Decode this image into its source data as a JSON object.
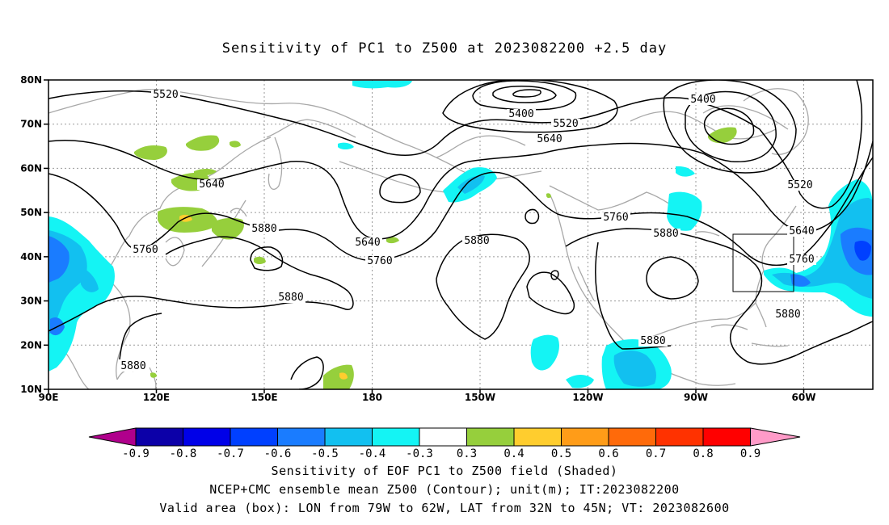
{
  "title": "Sensitivity of PC1 to Z500 at 2023082200 +2.5 day",
  "lat_ticks": [
    "80N",
    "70N",
    "60N",
    "50N",
    "40N",
    "30N",
    "20N",
    "10N"
  ],
  "lon_ticks": [
    "90E",
    "120E",
    "150E",
    "180",
    "150W",
    "120W",
    "90W",
    "60W"
  ],
  "contour_labels": [
    "5520",
    "5640",
    "5760",
    "5880",
    "5880",
    "5880",
    "5400",
    "5520",
    "5640",
    "5640",
    "5760",
    "5880",
    "5760",
    "5880",
    "5400",
    "5520",
    "5640",
    "5760",
    "5880",
    "5880"
  ],
  "colorbar": {
    "labels": [
      "-0.9",
      "-0.8",
      "-0.7",
      "-0.6",
      "-0.5",
      "-0.4",
      "-0.3",
      "0.3",
      "0.4",
      "0.5",
      "0.6",
      "0.7",
      "0.8",
      "0.9"
    ],
    "colors": [
      "#b0008c",
      "#0c00a8",
      "#0000e8",
      "#0040ff",
      "#1a7cff",
      "#12c0f0",
      "#14f4f4",
      "#ffffff",
      "#96cf3c",
      "#ffcd2e",
      "#ff9c18",
      "#ff6a0a",
      "#ff3200",
      "#ff0000",
      "#ff9bc8"
    ]
  },
  "footer": {
    "line1": "Sensitivity of EOF PC1 to Z500 field (Shaded)",
    "line2": "NCEP+CMC ensemble mean Z500 (Contour); unit(m); IT:2023082200",
    "line3": "Valid area (box): LON from 79W to 62W, LAT from 32N to 45N; VT: 2023082600"
  }
}
